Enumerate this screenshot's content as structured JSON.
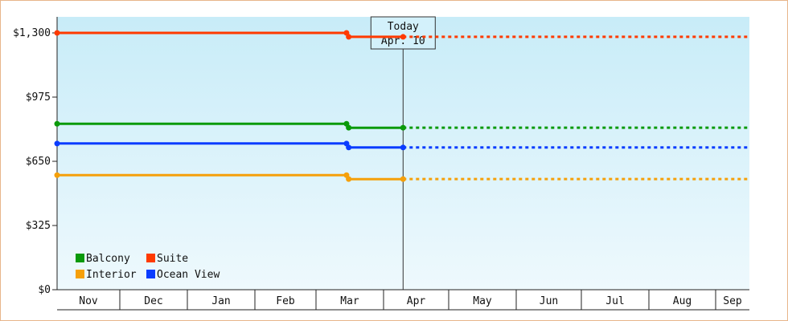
{
  "chart_data": {
    "type": "line",
    "title": "",
    "xlabel": "",
    "ylabel": "",
    "x_categories": [
      "Nov",
      "Dec",
      "Jan",
      "Feb",
      "Mar",
      "Apr",
      "May",
      "Jun",
      "Jul",
      "Aug",
      "Sep"
    ],
    "y_ticks": [
      "$0",
      "$325",
      "$650",
      "$975",
      "$1,300"
    ],
    "ylim": [
      0,
      1300
    ],
    "grid": false,
    "today_marker": {
      "line1": "Today",
      "line2": "Apr. 10",
      "date": "2024-04-10"
    },
    "background_gradient": [
      "#c8ecf8",
      "#eef9fd"
    ],
    "legend": {
      "placement": "bottom-left",
      "columns": 2
    },
    "series": [
      {
        "name": "Balcony",
        "color": "#0a9a0a",
        "points": [
          {
            "date": "2023-11-01",
            "value": 840
          },
          {
            "date": "2024-03-15",
            "value": 840
          },
          {
            "date": "2024-03-16",
            "value": 820
          },
          {
            "date": "2024-04-10",
            "value": 820
          }
        ],
        "forecast_value": 820
      },
      {
        "name": "Suite",
        "color": "#ff3a00",
        "points": [
          {
            "date": "2023-11-01",
            "value": 1300
          },
          {
            "date": "2024-03-15",
            "value": 1300
          },
          {
            "date": "2024-03-16",
            "value": 1280
          },
          {
            "date": "2024-04-10",
            "value": 1280
          }
        ],
        "forecast_value": 1280
      },
      {
        "name": "Interior",
        "color": "#f5a00a",
        "points": [
          {
            "date": "2023-11-01",
            "value": 580
          },
          {
            "date": "2024-03-15",
            "value": 580
          },
          {
            "date": "2024-03-16",
            "value": 560
          },
          {
            "date": "2024-04-10",
            "value": 560
          }
        ],
        "forecast_value": 560
      },
      {
        "name": "Ocean View",
        "color": "#0a3cff",
        "points": [
          {
            "date": "2023-11-01",
            "value": 740
          },
          {
            "date": "2024-03-15",
            "value": 740
          },
          {
            "date": "2024-03-16",
            "value": 720
          },
          {
            "date": "2024-04-10",
            "value": 720
          }
        ],
        "forecast_value": 720
      }
    ]
  }
}
